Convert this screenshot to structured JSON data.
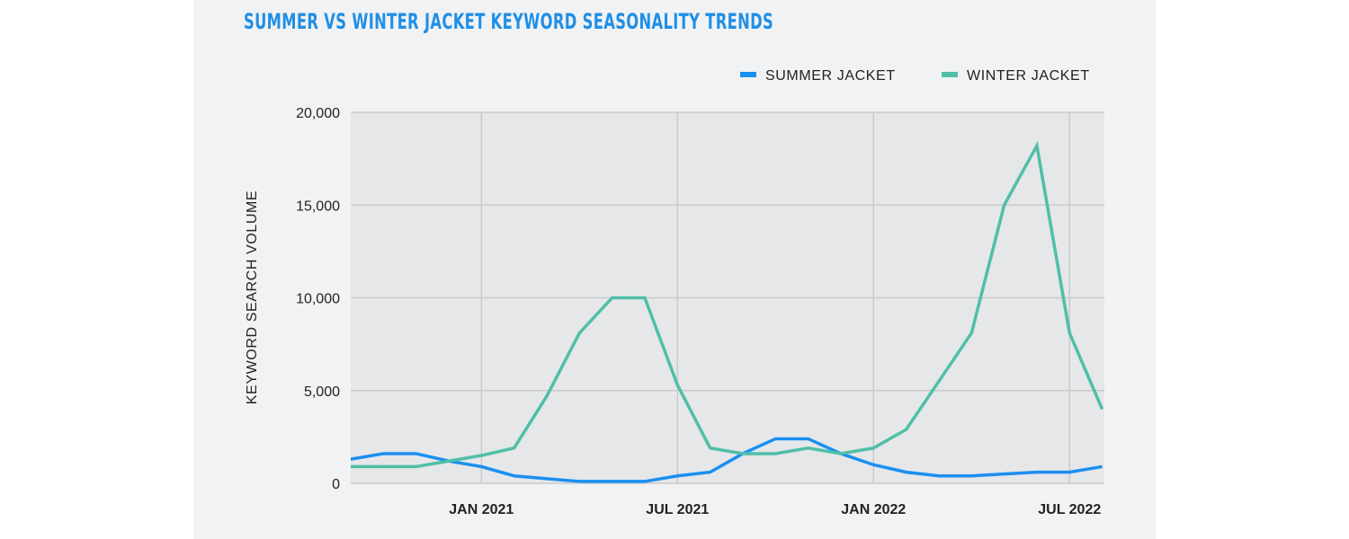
{
  "chart_data": {
    "type": "line",
    "title": "SUMMER VS WINTER JACKET KEYWORD SEASONALITY TRENDS",
    "xlabel": "",
    "ylabel": "KEYWORD SEARCH VOLUME",
    "x": [
      "2020-09",
      "2020-10",
      "2020-11",
      "2020-12",
      "2021-01",
      "2021-02",
      "2021-03",
      "2021-04",
      "2021-05",
      "2021-06",
      "2021-07",
      "2021-08",
      "2021-09",
      "2021-10",
      "2021-11",
      "2021-12",
      "2022-01",
      "2022-02",
      "2022-03",
      "2022-04",
      "2022-05",
      "2022-06",
      "2022-07",
      "2022-08"
    ],
    "xticks": [
      {
        "x": "2021-01",
        "label": "JAN 2021"
      },
      {
        "x": "2021-07",
        "label": "JUL 2021"
      },
      {
        "x": "2022-01",
        "label": "JAN 2022"
      },
      {
        "x": "2022-07",
        "label": "JUL 2022"
      }
    ],
    "yticks": [
      {
        "v": 0,
        "label": "0"
      },
      {
        "v": 5000,
        "label": "5,000"
      },
      {
        "v": 10000,
        "label": "10,000"
      },
      {
        "v": 15000,
        "label": "15,000"
      },
      {
        "v": 20000,
        "label": "20,000"
      }
    ],
    "ylim": [
      0,
      20000
    ],
    "grid": true,
    "legend": "top-right",
    "series": [
      {
        "name": "SUMMER JACKET",
        "color": "#1a8ff0",
        "values": [
          1300,
          1600,
          1600,
          1200,
          900,
          400,
          250,
          100,
          100,
          100,
          400,
          600,
          1600,
          2400,
          2400,
          1600,
          1000,
          600,
          400,
          400,
          500,
          600,
          600,
          900
        ]
      },
      {
        "name": "WINTER JACKET",
        "color": "#4fbfa8",
        "values": [
          900,
          900,
          900,
          1200,
          1500,
          1900,
          4700,
          8100,
          10000,
          10000,
          5300,
          1900,
          1600,
          1600,
          1900,
          1600,
          1900,
          2900,
          5500,
          8100,
          15000,
          18200,
          8100,
          4000
        ]
      }
    ]
  }
}
